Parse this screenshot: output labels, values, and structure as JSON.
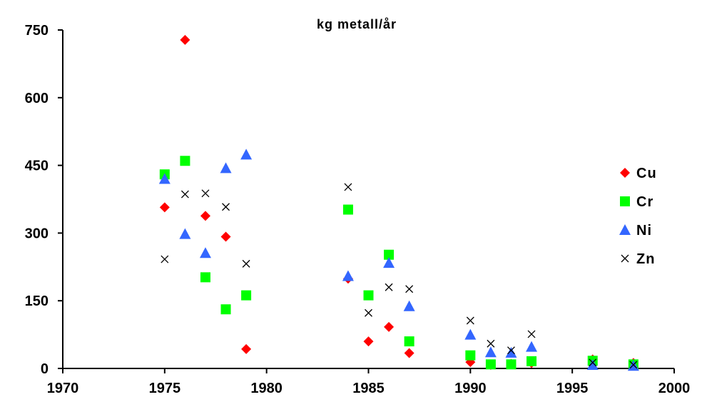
{
  "chart_data": {
    "type": "scatter",
    "title": "kg metall/år",
    "xlabel": "",
    "ylabel": "",
    "xlim": [
      1970,
      2000
    ],
    "ylim": [
      0,
      750
    ],
    "xticks": [
      1970,
      1975,
      1980,
      1985,
      1990,
      1995,
      2000
    ],
    "yticks": [
      0,
      150,
      300,
      450,
      600,
      750
    ],
    "grid": false,
    "legend": "right",
    "series": [
      {
        "name": "Cu",
        "marker": "diamond",
        "color": "#ff0000",
        "points": [
          [
            1975,
            357
          ],
          [
            1976,
            728
          ],
          [
            1977,
            338
          ],
          [
            1978,
            292
          ],
          [
            1979,
            43
          ],
          [
            1984,
            199
          ],
          [
            1985,
            60
          ],
          [
            1986,
            92
          ],
          [
            1987,
            34
          ],
          [
            1990,
            14
          ],
          [
            1991,
            8
          ],
          [
            1992,
            10
          ],
          [
            1993,
            12
          ],
          [
            1996,
            20
          ],
          [
            1998,
            12
          ]
        ]
      },
      {
        "name": "Cr",
        "marker": "square",
        "color": "#00ff00",
        "points": [
          [
            1975,
            430
          ],
          [
            1976,
            460
          ],
          [
            1977,
            202
          ],
          [
            1978,
            131
          ],
          [
            1979,
            162
          ],
          [
            1984,
            352
          ],
          [
            1985,
            162
          ],
          [
            1986,
            252
          ],
          [
            1987,
            60
          ],
          [
            1990,
            29
          ],
          [
            1991,
            9
          ],
          [
            1992,
            9
          ],
          [
            1993,
            16
          ],
          [
            1996,
            17
          ],
          [
            1998,
            9
          ]
        ]
      },
      {
        "name": "Ni",
        "marker": "triangle",
        "color": "#3366ff",
        "points": [
          [
            1975,
            420
          ],
          [
            1976,
            298
          ],
          [
            1977,
            256
          ],
          [
            1978,
            444
          ],
          [
            1979,
            474
          ],
          [
            1984,
            205
          ],
          [
            1986,
            234
          ],
          [
            1987,
            138
          ],
          [
            1990,
            75
          ],
          [
            1991,
            36
          ],
          [
            1992,
            35
          ],
          [
            1993,
            48
          ],
          [
            1996,
            8
          ],
          [
            1998,
            6
          ]
        ]
      },
      {
        "name": "Zn",
        "marker": "x",
        "color": "#000000",
        "points": [
          [
            1975,
            242
          ],
          [
            1976,
            386
          ],
          [
            1977,
            388
          ],
          [
            1978,
            358
          ],
          [
            1979,
            232
          ],
          [
            1984,
            402
          ],
          [
            1985,
            123
          ],
          [
            1986,
            180
          ],
          [
            1987,
            176
          ],
          [
            1990,
            106
          ],
          [
            1991,
            55
          ],
          [
            1992,
            40
          ],
          [
            1993,
            76
          ],
          [
            1996,
            13
          ],
          [
            1998,
            8
          ]
        ]
      }
    ]
  }
}
